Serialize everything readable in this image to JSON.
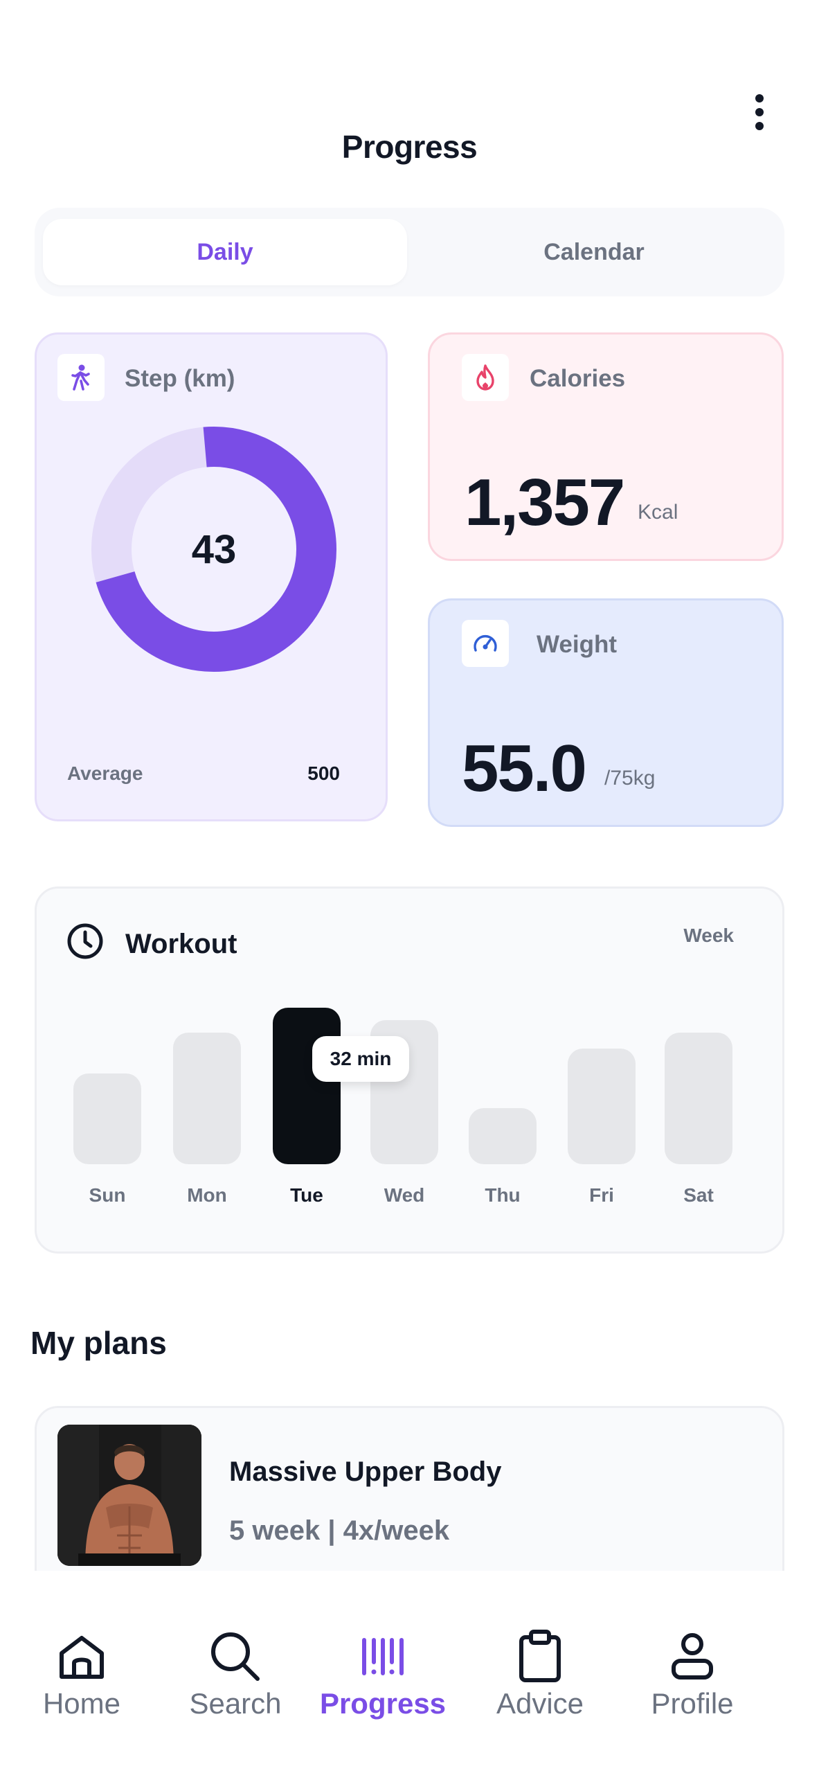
{
  "header": {
    "title": "Progress"
  },
  "tabs": {
    "daily": "Daily",
    "calendar": "Calendar"
  },
  "steps": {
    "label": "Step (km)",
    "value": "43",
    "progress_fraction": 0.72,
    "average_label": "Average",
    "average_value": "500"
  },
  "calories": {
    "label": "Calories",
    "value": "1,357",
    "unit": "Kcal"
  },
  "weight": {
    "label": "Weight",
    "value": "55.0",
    "unit": "/75kg"
  },
  "workout": {
    "title": "Workout",
    "range": "Week",
    "tooltip": "32 min",
    "days": [
      {
        "label": "Sun",
        "level": 0.58
      },
      {
        "label": "Mon",
        "level": 0.84
      },
      {
        "label": "Tue",
        "level": 1.0,
        "active": true
      },
      {
        "label": "Wed",
        "level": 0.92
      },
      {
        "label": "Thu",
        "level": 0.36
      },
      {
        "label": "Fri",
        "level": 0.74
      },
      {
        "label": "Sat",
        "level": 0.84
      }
    ]
  },
  "plans": {
    "heading": "My plans",
    "items": [
      {
        "title": "Massive Upper Body",
        "subtitle": "5 week | 4x/week"
      }
    ]
  },
  "nav": {
    "home": "Home",
    "search": "Search",
    "progress": "Progress",
    "advice": "Advice",
    "profile": "Profile"
  },
  "colors": {
    "accent": "#7a4de6",
    "donut_track": "#e4dcf9",
    "calories_icon": "#e8436a",
    "weight_icon": "#2f5fd6"
  }
}
